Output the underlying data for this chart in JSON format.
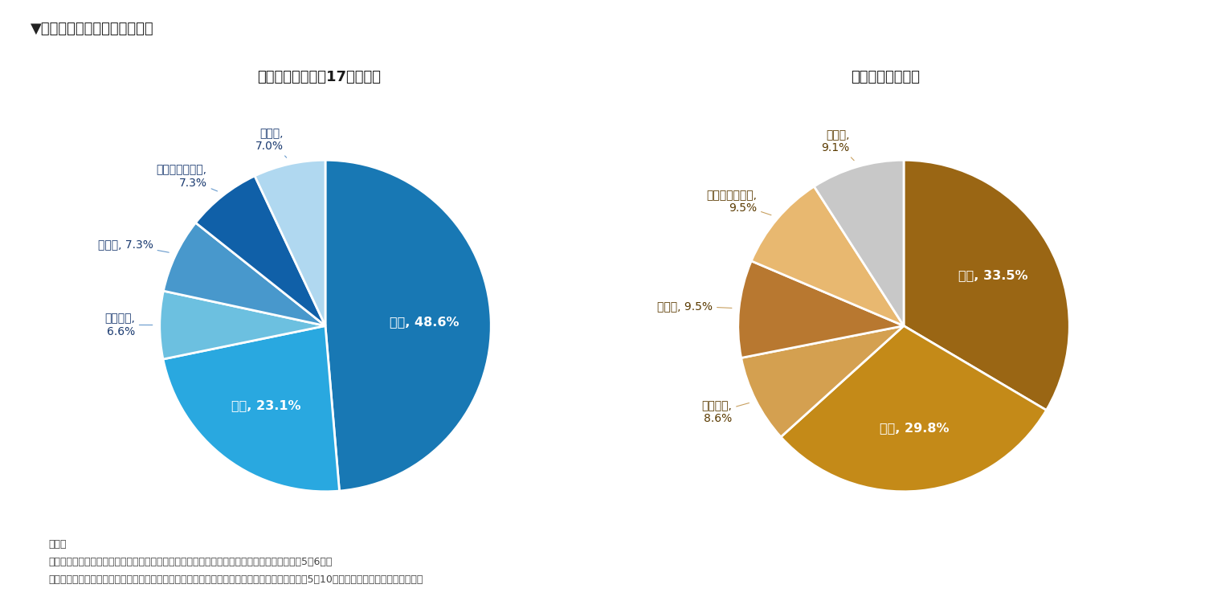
{
  "title": "▼オフィスビル電力消費の内訳",
  "left_title": "【夏季　点灯帯（17時頃）】",
  "right_title": "【冬季　１日間】",
  "left_values": [
    48.6,
    23.1,
    6.6,
    7.3,
    7.3,
    7.0
  ],
  "left_colors": [
    "#1878b4",
    "#29a8e0",
    "#6cc0e0",
    "#4898cc",
    "#1060a8",
    "#b0d8f0"
  ],
  "left_inside_labels": [
    {
      "text": "空調, 48.6%",
      "inside": true,
      "color": "white"
    },
    {
      "text": "照明, 23.1%",
      "inside": true,
      "color": "white"
    },
    {
      "text": "パソコン,\n6.6%",
      "inside": false,
      "color": "#1a3a70"
    },
    {
      "text": "複合機, 7.3%",
      "inside": false,
      "color": "#1a3a70"
    },
    {
      "text": "エレベーター等,\n7.3%",
      "inside": false,
      "color": "#1a3a70"
    },
    {
      "text": "その他,\n7.0%",
      "inside": false,
      "color": "#1a3a70"
    }
  ],
  "right_values": [
    33.5,
    29.8,
    8.6,
    9.5,
    9.5,
    9.1
  ],
  "right_colors": [
    "#9a6614",
    "#c48a18",
    "#d4a050",
    "#b87830",
    "#e8b870",
    "#c8c8c8"
  ],
  "right_inside_labels": [
    {
      "text": "空調, 33.5%",
      "inside": true,
      "color": "white"
    },
    {
      "text": "照明, 29.8%",
      "inside": true,
      "color": "white"
    },
    {
      "text": "パソコン,\n8.6%",
      "inside": false,
      "color": "#5a3a00"
    },
    {
      "text": "複合機, 9.5%",
      "inside": false,
      "color": "#5a3a00"
    },
    {
      "text": "エレベーター等,\n9.5%",
      "inside": false,
      "color": "#5a3a00"
    },
    {
      "text": "その他,\n9.1%",
      "inside": false,
      "color": "#5a3a00"
    }
  ],
  "source_text": "出典：\n左図「夏季の省エネ節電メニュー　東北・東京・中部・北陸・関西・中国・四国・九州」令和5年6月、\n右図「冬季の省エネ・節電メニュー　東北・東京・中部・北陸・関西・中国・四国・九州」令和5年10月｜経済産業省資源エネルギー庁",
  "background_color": "#ffffff"
}
